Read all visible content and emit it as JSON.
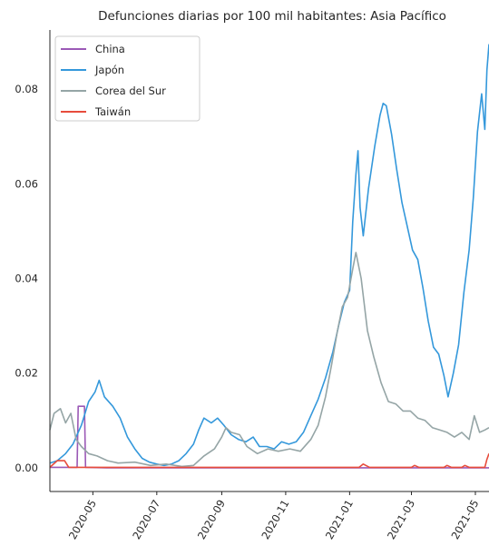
{
  "chart_data": {
    "type": "line",
    "title": "Defunciones diarias por 100 mil habitantes: Asia Pacífico",
    "xlabel": "",
    "ylabel": "",
    "xlim": [
      "2020-03-21",
      "2021-05-14"
    ],
    "ylim": [
      -0.005,
      0.0925
    ],
    "x_tick_labels": [
      "2020-05",
      "2020-07",
      "2020-09",
      "2020-11",
      "2021-01",
      "2021-03",
      "2021-05"
    ],
    "x_tick_dates": [
      "2020-05-01",
      "2020-07-01",
      "2020-09-01",
      "2020-11-01",
      "2021-01-01",
      "2021-03-01",
      "2021-05-01"
    ],
    "y_ticks": [
      0.0,
      0.02,
      0.04,
      0.06,
      0.08
    ],
    "y_tick_labels": [
      "0.00",
      "0.02",
      "0.04",
      "0.06",
      "0.08"
    ],
    "grid": false,
    "legend_position": "top-left",
    "series": [
      {
        "name": "China",
        "color": "#9b59b6",
        "points": [
          [
            "2020-03-21",
            0.0001
          ],
          [
            "2020-04-16",
            0.0001
          ],
          [
            "2020-04-17",
            0.013
          ],
          [
            "2020-04-23",
            0.013
          ],
          [
            "2020-04-24",
            0.0001
          ],
          [
            "2020-05-14",
            0.0
          ],
          [
            "2021-05-14",
            0.0
          ]
        ]
      },
      {
        "name": "Japón",
        "color": "#3498db",
        "points": [
          [
            "2020-03-21",
            0.001
          ],
          [
            "2020-03-28",
            0.0015
          ],
          [
            "2020-04-05",
            0.003
          ],
          [
            "2020-04-12",
            0.005
          ],
          [
            "2020-04-20",
            0.009
          ],
          [
            "2020-04-27",
            0.014
          ],
          [
            "2020-05-03",
            0.016
          ],
          [
            "2020-05-07",
            0.0185
          ],
          [
            "2020-05-12",
            0.015
          ],
          [
            "2020-05-20",
            0.013
          ],
          [
            "2020-05-27",
            0.0105
          ],
          [
            "2020-06-03",
            0.0065
          ],
          [
            "2020-06-10",
            0.004
          ],
          [
            "2020-06-17",
            0.002
          ],
          [
            "2020-06-24",
            0.0012
          ],
          [
            "2020-07-01",
            0.0008
          ],
          [
            "2020-07-08",
            0.0005
          ],
          [
            "2020-07-15",
            0.0008
          ],
          [
            "2020-07-22",
            0.0015
          ],
          [
            "2020-07-29",
            0.003
          ],
          [
            "2020-08-05",
            0.005
          ],
          [
            "2020-08-10",
            0.008
          ],
          [
            "2020-08-15",
            0.0105
          ],
          [
            "2020-08-22",
            0.0095
          ],
          [
            "2020-08-28",
            0.0105
          ],
          [
            "2020-09-03",
            0.009
          ],
          [
            "2020-09-10",
            0.007
          ],
          [
            "2020-09-17",
            0.006
          ],
          [
            "2020-09-24",
            0.0055
          ],
          [
            "2020-10-01",
            0.0065
          ],
          [
            "2020-10-07",
            0.0045
          ],
          [
            "2020-10-14",
            0.0045
          ],
          [
            "2020-10-21",
            0.004
          ],
          [
            "2020-10-28",
            0.0055
          ],
          [
            "2020-11-04",
            0.005
          ],
          [
            "2020-11-11",
            0.0055
          ],
          [
            "2020-11-18",
            0.0075
          ],
          [
            "2020-11-25",
            0.011
          ],
          [
            "2020-12-02",
            0.0145
          ],
          [
            "2020-12-09",
            0.019
          ],
          [
            "2020-12-16",
            0.0245
          ],
          [
            "2020-12-22",
            0.0305
          ],
          [
            "2020-12-27",
            0.035
          ],
          [
            "2021-01-01",
            0.0375
          ],
          [
            "2021-01-04",
            0.052
          ],
          [
            "2021-01-07",
            0.062
          ],
          [
            "2021-01-09",
            0.067
          ],
          [
            "2021-01-11",
            0.055
          ],
          [
            "2021-01-14",
            0.049
          ],
          [
            "2021-01-19",
            0.059
          ],
          [
            "2021-01-25",
            0.068
          ],
          [
            "2021-01-30",
            0.0745
          ],
          [
            "2021-02-02",
            0.077
          ],
          [
            "2021-02-05",
            0.0765
          ],
          [
            "2021-02-10",
            0.0705
          ],
          [
            "2021-02-15",
            0.063
          ],
          [
            "2021-02-20",
            0.056
          ],
          [
            "2021-02-25",
            0.051
          ],
          [
            "2021-03-02",
            0.046
          ],
          [
            "2021-03-07",
            0.044
          ],
          [
            "2021-03-12",
            0.038
          ],
          [
            "2021-03-17",
            0.031
          ],
          [
            "2021-03-22",
            0.0255
          ],
          [
            "2021-03-27",
            0.024
          ],
          [
            "2021-04-01",
            0.0195
          ],
          [
            "2021-04-05",
            0.015
          ],
          [
            "2021-04-10",
            0.02
          ],
          [
            "2021-04-15",
            0.026
          ],
          [
            "2021-04-20",
            0.037
          ],
          [
            "2021-04-25",
            0.046
          ],
          [
            "2021-04-29",
            0.057
          ],
          [
            "2021-05-03",
            0.071
          ],
          [
            "2021-05-07",
            0.079
          ],
          [
            "2021-05-10",
            0.0715
          ],
          [
            "2021-05-12",
            0.084
          ],
          [
            "2021-05-14",
            0.0895
          ]
        ]
      },
      {
        "name": "Corea del Sur",
        "color": "#95a5a6",
        "points": [
          [
            "2020-03-21",
            0.008
          ],
          [
            "2020-03-25",
            0.0115
          ],
          [
            "2020-03-31",
            0.0125
          ],
          [
            "2020-04-05",
            0.0095
          ],
          [
            "2020-04-10",
            0.0115
          ],
          [
            "2020-04-15",
            0.006
          ],
          [
            "2020-04-20",
            0.0045
          ],
          [
            "2020-04-27",
            0.003
          ],
          [
            "2020-05-05",
            0.0025
          ],
          [
            "2020-05-15",
            0.0015
          ],
          [
            "2020-05-25",
            0.001
          ],
          [
            "2020-06-10",
            0.0012
          ],
          [
            "2020-06-25",
            0.0005
          ],
          [
            "2020-07-10",
            0.0008
          ],
          [
            "2020-07-25",
            0.0003
          ],
          [
            "2020-08-05",
            0.0005
          ],
          [
            "2020-08-15",
            0.0025
          ],
          [
            "2020-08-25",
            0.004
          ],
          [
            "2020-09-01",
            0.0065
          ],
          [
            "2020-09-05",
            0.0085
          ],
          [
            "2020-09-10",
            0.0075
          ],
          [
            "2020-09-18",
            0.007
          ],
          [
            "2020-09-25",
            0.0045
          ],
          [
            "2020-10-05",
            0.003
          ],
          [
            "2020-10-15",
            0.004
          ],
          [
            "2020-10-25",
            0.0035
          ],
          [
            "2020-11-05",
            0.004
          ],
          [
            "2020-11-15",
            0.0035
          ],
          [
            "2020-11-25",
            0.006
          ],
          [
            "2020-12-02",
            0.009
          ],
          [
            "2020-12-09",
            0.015
          ],
          [
            "2020-12-15",
            0.022
          ],
          [
            "2020-12-20",
            0.0285
          ],
          [
            "2020-12-25",
            0.034
          ],
          [
            "2020-12-30",
            0.036
          ],
          [
            "2021-01-04",
            0.042
          ],
          [
            "2021-01-07",
            0.0455
          ],
          [
            "2021-01-12",
            0.04
          ],
          [
            "2021-01-18",
            0.029
          ],
          [
            "2021-01-24",
            0.0235
          ],
          [
            "2021-01-31",
            0.018
          ],
          [
            "2021-02-07",
            0.014
          ],
          [
            "2021-02-14",
            0.0135
          ],
          [
            "2021-02-21",
            0.012
          ],
          [
            "2021-02-28",
            0.012
          ],
          [
            "2021-03-07",
            0.0105
          ],
          [
            "2021-03-14",
            0.01
          ],
          [
            "2021-03-21",
            0.0085
          ],
          [
            "2021-03-28",
            0.008
          ],
          [
            "2021-04-04",
            0.0075
          ],
          [
            "2021-04-11",
            0.0065
          ],
          [
            "2021-04-18",
            0.0075
          ],
          [
            "2021-04-25",
            0.006
          ],
          [
            "2021-04-30",
            0.011
          ],
          [
            "2021-05-05",
            0.0075
          ],
          [
            "2021-05-10",
            0.008
          ],
          [
            "2021-05-14",
            0.0085
          ]
        ]
      },
      {
        "name": "Taiwán",
        "color": "#e74c3c",
        "points": [
          [
            "2020-03-21",
            0.0001
          ],
          [
            "2020-03-28",
            0.0015
          ],
          [
            "2020-04-04",
            0.0015
          ],
          [
            "2020-04-08",
            0.0001
          ],
          [
            "2020-05-14",
            0.0001
          ],
          [
            "2021-01-10",
            0.0001
          ],
          [
            "2021-01-14",
            0.0008
          ],
          [
            "2021-01-20",
            0.0001
          ],
          [
            "2021-03-01",
            0.0001
          ],
          [
            "2021-03-04",
            0.0005
          ],
          [
            "2021-03-08",
            0.0001
          ],
          [
            "2021-04-01",
            0.0001
          ],
          [
            "2021-04-04",
            0.0005
          ],
          [
            "2021-04-08",
            0.0001
          ],
          [
            "2021-04-18",
            0.0001
          ],
          [
            "2021-04-21",
            0.0005
          ],
          [
            "2021-04-25",
            0.0001
          ],
          [
            "2021-05-10",
            0.0001
          ],
          [
            "2021-05-12",
            0.0018
          ],
          [
            "2021-05-14",
            0.003
          ]
        ]
      }
    ]
  }
}
